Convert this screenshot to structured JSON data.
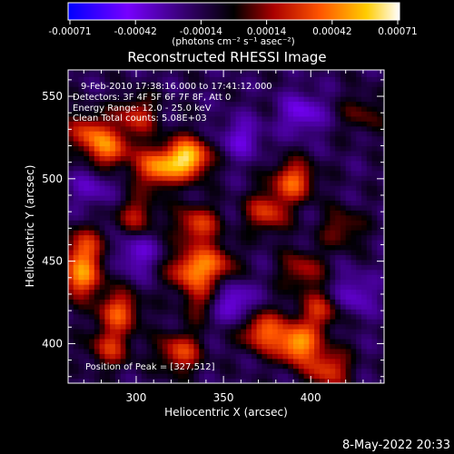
{
  "chart_data": {
    "type": "heatmap",
    "title": "Reconstructed RHESSI Image",
    "xlabel": "Heliocentric X (arcsec)",
    "ylabel": "Heliocentric Y (arcsec)",
    "xlim": [
      261,
      442
    ],
    "ylim": [
      376,
      566
    ],
    "x_ticks": [
      300,
      350,
      400
    ],
    "y_ticks": [
      400,
      450,
      500,
      550
    ],
    "colorbar": {
      "ticks": [
        "-0.00071",
        "-0.00042",
        "-0.00014",
        "0.00014",
        "0.00042",
        "0.00071"
      ],
      "range": [
        -0.00071,
        0.00071
      ],
      "units_label": "(photons cm⁻² s⁻¹ asec⁻²)"
    },
    "annotations": {
      "time_range": "9-Feb-2010 17:38:16.000 to 17:41:12.000",
      "detectors": "Detectors: 3F 4F 5F 6F 7F 8F, Att 0",
      "energy_range": "Energy Range: 12.0 - 25.0 keV",
      "method": "Clean    Total counts: 5.08E+03",
      "peak": "Position of Peak = [327,512]"
    },
    "peak_position": [
      327,
      512
    ],
    "hotspots": [
      {
        "x": 330,
        "y": 513,
        "intensity": 0.00071
      },
      {
        "x": 312,
        "y": 507,
        "intensity": 0.00055
      },
      {
        "x": 285,
        "y": 518,
        "intensity": 0.00045
      },
      {
        "x": 272,
        "y": 528,
        "intensity": 0.0004
      },
      {
        "x": 300,
        "y": 538,
        "intensity": 0.00035
      },
      {
        "x": 390,
        "y": 499,
        "intensity": 0.00048
      },
      {
        "x": 375,
        "y": 480,
        "intensity": 0.0004
      },
      {
        "x": 335,
        "y": 472,
        "intensity": 0.00042
      },
      {
        "x": 300,
        "y": 478,
        "intensity": 0.0003
      },
      {
        "x": 270,
        "y": 458,
        "intensity": 0.00042
      },
      {
        "x": 268,
        "y": 440,
        "intensity": 0.00052
      },
      {
        "x": 345,
        "y": 448,
        "intensity": 0.00038
      },
      {
        "x": 330,
        "y": 445,
        "intensity": 0.00045
      },
      {
        "x": 395,
        "y": 445,
        "intensity": 0.0003
      },
      {
        "x": 338,
        "y": 426,
        "intensity": 0.00025
      },
      {
        "x": 405,
        "y": 420,
        "intensity": 0.00035
      },
      {
        "x": 392,
        "y": 400,
        "intensity": 0.00062
      },
      {
        "x": 372,
        "y": 408,
        "intensity": 0.00048
      },
      {
        "x": 410,
        "y": 385,
        "intensity": 0.00042
      },
      {
        "x": 290,
        "y": 420,
        "intensity": 0.00045
      },
      {
        "x": 285,
        "y": 398,
        "intensity": 0.00035
      },
      {
        "x": 325,
        "y": 395,
        "intensity": 0.00042
      },
      {
        "x": 418,
        "y": 470,
        "intensity": 0.00025
      },
      {
        "x": 430,
        "y": 540,
        "intensity": 0.0002
      }
    ],
    "cold_regions": [
      {
        "x": 355,
        "y": 425,
        "intensity": -0.00035
      },
      {
        "x": 395,
        "y": 540,
        "intensity": -0.0003
      },
      {
        "x": 300,
        "y": 455,
        "intensity": -0.00025
      },
      {
        "x": 360,
        "y": 525,
        "intensity": -0.00025
      },
      {
        "x": 425,
        "y": 430,
        "intensity": -0.00025
      },
      {
        "x": 275,
        "y": 495,
        "intensity": -0.0002
      }
    ]
  },
  "footer": {
    "timestamp": "8-May-2022 20:33"
  }
}
